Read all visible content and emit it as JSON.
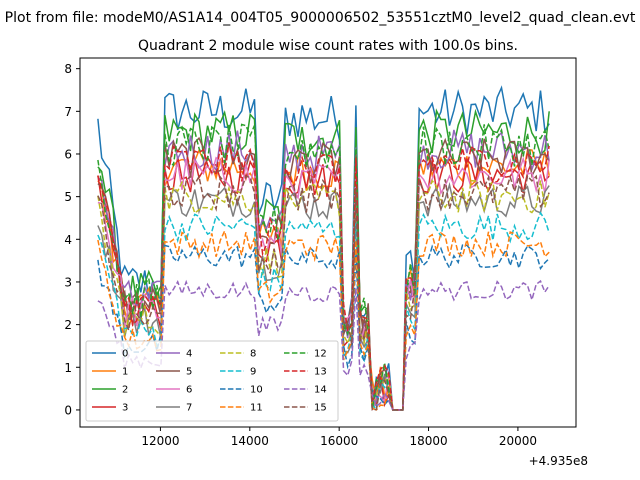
{
  "suptitle": "Plot from file: modeM0/AS1A14_004T05_9000006502_53551cztM0_level2_quad_clean.evt",
  "chart_data": {
    "type": "line",
    "title": "Quadrant 2 module wise count rates with 100.0s bins.",
    "xlabel": "",
    "ylabel": "",
    "x_offset_text": "+4.935e8",
    "xlim": [
      10200,
      21300
    ],
    "ylim": [
      -0.4,
      8.25
    ],
    "xticks": [
      12000,
      14000,
      16000,
      18000,
      20000
    ],
    "xtick_labels": [
      "12000",
      "14000",
      "16000",
      "18000",
      "20000"
    ],
    "yticks": [
      0,
      1,
      2,
      3,
      4,
      5,
      6,
      7,
      8
    ],
    "ytick_labels": [
      "0",
      "1",
      "2",
      "3",
      "4",
      "5",
      "6",
      "7",
      "8"
    ],
    "grid": false,
    "legend_position": "lower-left",
    "legend_columns": 4,
    "x_segments": [
      [
        10600,
        11200
      ],
      [
        11200,
        12100
      ],
      [
        12100,
        14200
      ],
      [
        14200,
        14800
      ],
      [
        14800,
        16100
      ],
      [
        16100,
        17200
      ],
      [
        17200,
        17500
      ],
      [
        17500,
        20700
      ]
    ],
    "segment_points": [
      7,
      10,
      22,
      7,
      14,
      12,
      4,
      33
    ],
    "spike_x": [
      15200,
      16350
    ],
    "series": [
      {
        "name": "0",
        "color": "#1f77b4",
        "dash": "solid",
        "level": 7.0
      },
      {
        "name": "1",
        "color": "#ff7f0e",
        "dash": "solid",
        "level": 5.7
      },
      {
        "name": "2",
        "color": "#2ca02c",
        "dash": "solid",
        "level": 6.5
      },
      {
        "name": "3",
        "color": "#d62728",
        "dash": "solid",
        "level": 5.5
      },
      {
        "name": "4",
        "color": "#9467bd",
        "dash": "solid",
        "level": 6.1
      },
      {
        "name": "5",
        "color": "#8c564b",
        "dash": "solid",
        "level": 5.9
      },
      {
        "name": "6",
        "color": "#e377c2",
        "dash": "solid",
        "level": 5.5
      },
      {
        "name": "7",
        "color": "#7f7f7f",
        "dash": "solid",
        "level": 4.9
      },
      {
        "name": "8",
        "color": "#bcbd22",
        "dash": "dashed",
        "level": 5.0
      },
      {
        "name": "9",
        "color": "#17becf",
        "dash": "dashed",
        "level": 4.3
      },
      {
        "name": "10",
        "color": "#1f77b4",
        "dash": "dashed",
        "level": 3.6
      },
      {
        "name": "11",
        "color": "#ff7f0e",
        "dash": "dashed",
        "level": 3.9
      },
      {
        "name": "12",
        "color": "#2ca02c",
        "dash": "dashed",
        "level": 6.2
      },
      {
        "name": "13",
        "color": "#d62728",
        "dash": "dashed",
        "level": 5.8
      },
      {
        "name": "14",
        "color": "#9467bd",
        "dash": "dashed",
        "level": 2.8
      },
      {
        "name": "15",
        "color": "#8c564b",
        "dash": "dashed",
        "level": 5.1
      }
    ]
  }
}
